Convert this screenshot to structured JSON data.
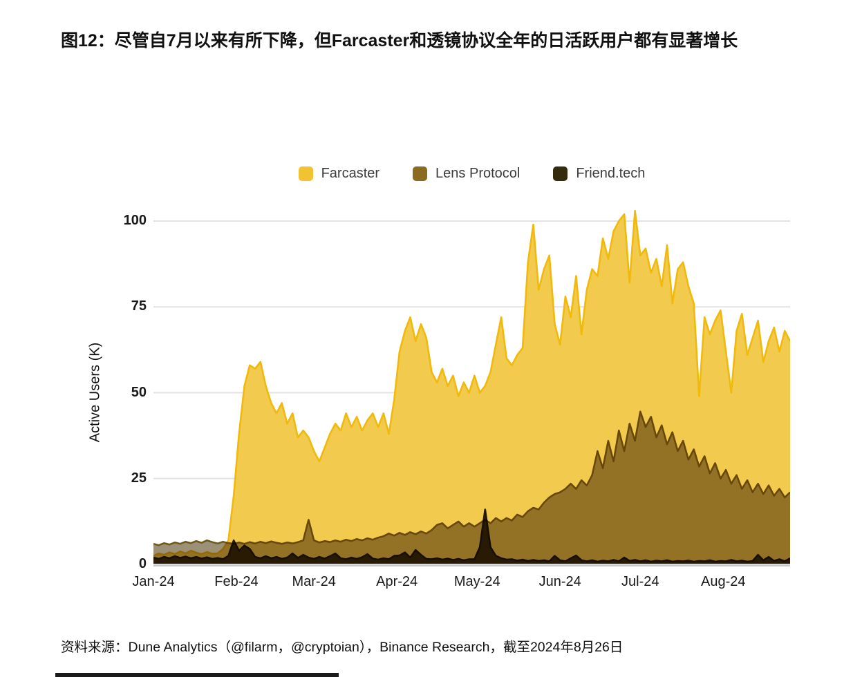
{
  "figure": {
    "title": "图12：尽管自7月以来有所下降，但Farcaster和透镜协议全年的日活跃用户都有显著增长",
    "source_note": "资料来源：Dune Analytics（@filarm，@cryptoian），Binance Research，截至2024年8月26日"
  },
  "colors": {
    "background": "#FFFFFF",
    "title_text": "#111111",
    "tick_text": "#1A1A1A",
    "legend_text": "#3B3B3B",
    "grid": "#E3E3E3",
    "axis_line": "#C8C8C8",
    "cropped_bottom_bar": "#1B1B1B",
    "farcaster": "#F1C232",
    "lens_protocol": "#8B6B1F",
    "friend_tech": "#352B0E"
  },
  "chart_data": {
    "type": "area",
    "title": "",
    "xlabel": "",
    "ylabel": "Active Users (K)",
    "ylim": [
      0,
      105
    ],
    "yticks": [
      0,
      25,
      50,
      75,
      100
    ],
    "grid": true,
    "legend_position": "top-center",
    "day_step": 2,
    "x_end_day": 238,
    "x_ticks": [
      {
        "label": "Jan-24",
        "day": 0
      },
      {
        "label": "Feb-24",
        "day": 31
      },
      {
        "label": "Mar-24",
        "day": 60
      },
      {
        "label": "Apr-24",
        "day": 91
      },
      {
        "label": "May-24",
        "day": 121
      },
      {
        "label": "Jun-24",
        "day": 152
      },
      {
        "label": "Jul-24",
        "day": 182
      },
      {
        "label": "Aug-24",
        "day": 213
      }
    ],
    "series": [
      {
        "name": "Farcaster",
        "legend_color": "#F1C232",
        "stroke": "#F0B90B",
        "fill": "#F1CA4E",
        "blend": null,
        "values": [
          2.5,
          3.2,
          2.8,
          3.5,
          3,
          3.8,
          3.2,
          4,
          3.4,
          3,
          3.6,
          3.1,
          3.2,
          4.5,
          7,
          20,
          38,
          52,
          58,
          57,
          59,
          52,
          47,
          44,
          47,
          41,
          44,
          37,
          39,
          37,
          33,
          30,
          34,
          38,
          41,
          39,
          44,
          40,
          43,
          39,
          42,
          44,
          40,
          44,
          38,
          48,
          62,
          68,
          72,
          65,
          70,
          66,
          56,
          53,
          57,
          52,
          55,
          49,
          53,
          50,
          55,
          50,
          52,
          56,
          64,
          72,
          60,
          58,
          61,
          63,
          88,
          99,
          80,
          86,
          90,
          70,
          64,
          78,
          72,
          84,
          67,
          80,
          86,
          84,
          95,
          89,
          97,
          100,
          102,
          82,
          103,
          90,
          92,
          85,
          89,
          81,
          93,
          76,
          86,
          88,
          81,
          76,
          49,
          72,
          67,
          71,
          74,
          62,
          50,
          68,
          73,
          61,
          66,
          71,
          59,
          65,
          69,
          62,
          68,
          65
        ]
      },
      {
        "name": "Lens Protocol",
        "legend_color": "#8B6B1F",
        "stroke": "#6E5A18",
        "fill": "#9C9077",
        "blend": "multiply",
        "values": [
          6,
          5.6,
          6.2,
          5.8,
          6.4,
          6,
          6.6,
          6.2,
          6.8,
          6.3,
          7,
          6.5,
          6.1,
          6.6,
          6.2,
          6,
          6.4,
          6,
          6.5,
          6.1,
          6.6,
          6.2,
          6.7,
          6.3,
          6,
          6.4,
          6.1,
          6.5,
          7,
          13,
          7,
          6.4,
          6.8,
          6.5,
          7,
          6.6,
          7.2,
          6.8,
          7.4,
          7,
          7.6,
          7.2,
          7.8,
          8.2,
          9,
          8.4,
          9.2,
          8.6,
          9.4,
          8.8,
          9.6,
          9,
          10,
          11.5,
          12,
          10.5,
          11.5,
          12.5,
          11,
          12,
          11,
          12,
          13,
          12,
          13.5,
          12.5,
          13.5,
          12.8,
          14.5,
          13.8,
          15.5,
          16.5,
          16,
          18,
          19.5,
          20.5,
          21,
          22,
          23.5,
          22,
          24.5,
          23,
          26,
          33,
          28,
          36,
          30,
          39,
          33,
          41,
          36,
          44.5,
          40,
          43,
          37,
          40.5,
          35,
          38.5,
          33,
          36,
          30.5,
          33.5,
          28.5,
          31.5,
          26.5,
          29.5,
          25,
          27.5,
          23.5,
          26,
          22,
          24.5,
          21,
          23.5,
          20.5,
          23,
          20,
          22,
          19.5,
          21
        ]
      },
      {
        "name": "Friend.tech",
        "legend_color": "#352B0E",
        "stroke": "#26200A",
        "fill": "#453A13",
        "blend": "multiply",
        "values": [
          2,
          1.6,
          2.2,
          1.8,
          2.4,
          1.9,
          2.3,
          1.8,
          2.2,
          1.7,
          2.1,
          1.6,
          1.9,
          1.5,
          2.5,
          7,
          4,
          5.5,
          4.5,
          2.2,
          1.8,
          2.4,
          1.8,
          2.2,
          1.6,
          2,
          3.2,
          1.9,
          2.8,
          2,
          1.6,
          2.2,
          1.7,
          2.4,
          3.2,
          1.8,
          1.5,
          2,
          1.6,
          2.1,
          3,
          1.7,
          1.4,
          1.8,
          1.5,
          2.5,
          2.6,
          3.5,
          2,
          4.2,
          2.8,
          1.6,
          1.5,
          1.8,
          1.4,
          1.7,
          1.3,
          1.6,
          1.2,
          1.5,
          1.5,
          5,
          16,
          5,
          2.5,
          1.8,
          1.4,
          1.5,
          1.1,
          1.4,
          1,
          1.3,
          1,
          1.2,
          0.9,
          2.5,
          1.2,
          0.9,
          1.8,
          2.6,
          1.2,
          0.9,
          1.2,
          0.8,
          1.1,
          0.9,
          1.3,
          0.9,
          2,
          1,
          1.3,
          0.9,
          1.2,
          0.8,
          1.1,
          0.9,
          1.2,
          0.8,
          1,
          0.9,
          1.1,
          0.8,
          1,
          0.9,
          1.2,
          0.8,
          1,
          0.9,
          1.3,
          0.9,
          1.1,
          0.8,
          1,
          2.8,
          1.2,
          2.2,
          1,
          1.5,
          0.9,
          1.8
        ]
      }
    ]
  }
}
